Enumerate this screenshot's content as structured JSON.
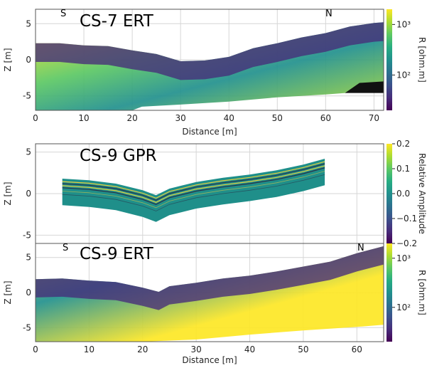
{
  "colors": {
    "viridis": [
      "#440154",
      "#472c7a",
      "#3b518b",
      "#2c718e",
      "#21908d",
      "#27ad81",
      "#5cc863",
      "#aadc32",
      "#fde725"
    ],
    "grid": "#d6d6d6",
    "frame": "#555555",
    "gpr_line": "#f2d33a",
    "gpr_fill": "#1f8f8a"
  },
  "chart_data": [
    {
      "type": "heatmap",
      "title": "CS-7  ERT",
      "direction_left": "S",
      "direction_right": "N",
      "xlabel": "Distance [m]",
      "ylabel": "Z [m]",
      "xlim": [
        0,
        72
      ],
      "ylim": [
        -7,
        7
      ],
      "xticks": [
        0,
        10,
        20,
        30,
        40,
        50,
        60,
        70
      ],
      "yticks": [
        5,
        0,
        -5
      ],
      "grid": true,
      "colorbar": {
        "label": "R [ohm.m]",
        "scale": "log",
        "range": [
          20,
          2000
        ],
        "ticks": [
          {
            "value": 1000,
            "label": "10³"
          },
          {
            "value": 100,
            "label": "10²"
          }
        ]
      },
      "surface": [
        [
          0,
          2.3
        ],
        [
          5,
          2.3
        ],
        [
          10,
          2.0
        ],
        [
          15,
          1.9
        ],
        [
          20,
          1.3
        ],
        [
          25,
          0.8
        ],
        [
          30,
          -0.2
        ],
        [
          35,
          -0.1
        ],
        [
          40,
          0.4
        ],
        [
          45,
          1.6
        ],
        [
          50,
          2.3
        ],
        [
          55,
          3.1
        ],
        [
          60,
          3.7
        ],
        [
          65,
          4.6
        ],
        [
          70,
          5.1
        ],
        [
          72,
          5.2
        ]
      ],
      "bottom": [
        [
          0,
          -7
        ],
        [
          10,
          -7
        ],
        [
          20,
          -7
        ],
        [
          22,
          -6.5
        ],
        [
          30,
          -6.2
        ],
        [
          40,
          -5.8
        ],
        [
          50,
          -5.2
        ],
        [
          60,
          -4.8
        ],
        [
          72,
          -4.2
        ]
      ]
    },
    {
      "type": "heatmap",
      "title": "CS-9  GPR",
      "xlim": [
        0,
        65
      ],
      "ylim": [
        -6,
        6
      ],
      "yticks": [
        5,
        0,
        -5
      ],
      "ylabel": "Z [m]",
      "grid": true,
      "colorbar": {
        "label": "Relative Amplitude",
        "scale": "linear",
        "range": [
          -0.2,
          0.2
        ],
        "ticks": [
          {
            "value": 0.2,
            "label": "0.2"
          },
          {
            "value": 0.1,
            "label": "0.1"
          },
          {
            "value": 0.0,
            "label": "0.0"
          },
          {
            "value": -0.1,
            "label": "−0.1"
          },
          {
            "value": -0.2,
            "label": "−0.2"
          }
        ]
      },
      "surface": [
        [
          5,
          1.8
        ],
        [
          10,
          1.6
        ],
        [
          15,
          1.2
        ],
        [
          20,
          0.4
        ],
        [
          22.5,
          -0.2
        ],
        [
          25,
          0.6
        ],
        [
          30,
          1.4
        ],
        [
          35,
          1.9
        ],
        [
          40,
          2.3
        ],
        [
          45,
          2.8
        ],
        [
          50,
          3.5
        ],
        [
          54,
          4.2
        ]
      ],
      "thickness": 3.2
    },
    {
      "type": "heatmap",
      "title": "CS-9  ERT",
      "direction_left": "S",
      "direction_right": "N",
      "xlabel": "Distance [m]",
      "ylabel": "Z [m]",
      "xlim": [
        0,
        65
      ],
      "ylim": [
        -7,
        7
      ],
      "xticks": [
        0,
        10,
        20,
        30,
        40,
        50,
        60
      ],
      "yticks": [
        5,
        0,
        -5
      ],
      "grid": true,
      "colorbar": {
        "label": "R [ohm.m]",
        "scale": "log",
        "range": [
          20,
          2000
        ],
        "ticks": [
          {
            "value": 1000,
            "label": "10³"
          },
          {
            "value": 100,
            "label": "10²"
          }
        ]
      },
      "surface": [
        [
          0,
          1.9
        ],
        [
          5,
          2.0
        ],
        [
          10,
          1.7
        ],
        [
          15,
          1.5
        ],
        [
          20,
          0.7
        ],
        [
          23,
          0.1
        ],
        [
          25,
          0.9
        ],
        [
          30,
          1.4
        ],
        [
          35,
          2.0
        ],
        [
          40,
          2.4
        ],
        [
          45,
          3.0
        ],
        [
          50,
          3.7
        ],
        [
          55,
          4.4
        ],
        [
          60,
          5.6
        ],
        [
          65,
          6.6
        ]
      ],
      "bottom": [
        [
          0,
          -7
        ],
        [
          15,
          -7
        ],
        [
          20,
          -7
        ],
        [
          30,
          -6.7
        ],
        [
          40,
          -6.0
        ],
        [
          50,
          -5.4
        ],
        [
          60,
          -4.9
        ],
        [
          65,
          -4.6
        ]
      ]
    }
  ]
}
